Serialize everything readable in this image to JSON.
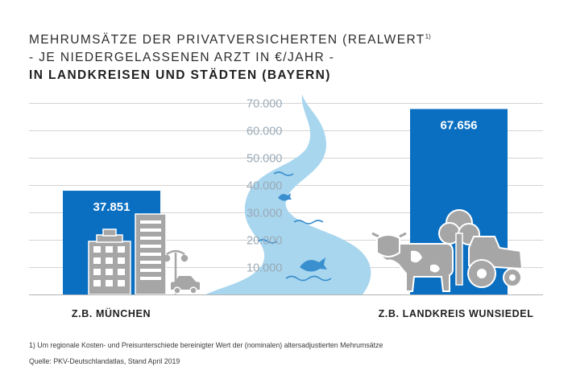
{
  "title": {
    "line1": "MEHRUMSÄTZE DER PRIVATVERSICHERTEN (REALWERT",
    "line1_sup": "1)",
    "line2": "- JE NIEDERGELASSENEN ARZT IN €/JAHR -",
    "line3": "IN LANDKREISEN UND STÄDTEN (BAYERN)"
  },
  "chart_data": {
    "type": "bar",
    "categories": [
      "Z.B. MÜNCHEN",
      "Z.B. LANDKREIS WUNSIEDEL"
    ],
    "values": [
      37851,
      67656
    ],
    "value_labels": [
      "37.851",
      "67.656"
    ],
    "ylim": [
      0,
      70000
    ],
    "y_ticks": [
      10000,
      20000,
      30000,
      40000,
      50000,
      60000,
      70000
    ],
    "y_tick_labels": [
      "10.000",
      "20.000",
      "30.000",
      "40.000",
      "50.000",
      "60.000",
      "70.000"
    ],
    "grid": true,
    "colors": {
      "bar": "#0a6fc1",
      "grid": "#d4d4d4",
      "tick_label": "#9aa9b6",
      "axis": "#b5b5b5",
      "river": "#a8d6ee",
      "pictogram": "#a6a6a6"
    }
  },
  "footnotes": {
    "note": "1)  Um regionale Kosten- und Preisunterschiede bereinigter Wert der (nominalen) altersadjustierten Mehrumsätze",
    "source": "Quelle: PKV-Deutschlandatlas, Stand April 2019"
  },
  "pictograms": [
    "city-buildings-icon",
    "street-lamp-icon",
    "car-icon",
    "river-icon",
    "fish-icon",
    "cow-icon",
    "tree-icon",
    "tractor-icon"
  ]
}
